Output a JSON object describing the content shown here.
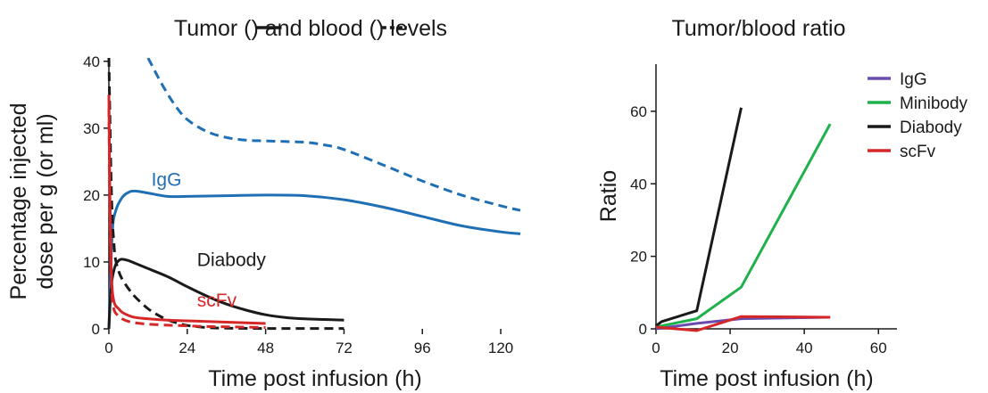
{
  "chart_data": [
    {
      "type": "line",
      "title": "Tumor (—) and blood (- - -) levels",
      "title_parts": [
        "Tumor (",
        ") and blood (",
        ") levels"
      ],
      "xlabel": "Time post infusion (h)",
      "ylabel": "Percentage injected dose per g (or ml)",
      "ylabel_lines": [
        "Percentage injected",
        "dose per g (or ml)"
      ],
      "xlim": [
        0,
        126
      ],
      "ylim": [
        0,
        40.5
      ],
      "xticks": [
        0,
        24,
        48,
        72,
        96,
        120
      ],
      "yticks": [
        0,
        10,
        20,
        30,
        40
      ],
      "grid": false,
      "legend": "none",
      "series": [
        {
          "name": "IgG",
          "kind": "tumor",
          "color": "#1f6fb4",
          "dash": false,
          "x": [
            0,
            1,
            2,
            4,
            6,
            8,
            12,
            18,
            24,
            36,
            48,
            60,
            72,
            84,
            96,
            108,
            120,
            126
          ],
          "y": [
            0,
            14,
            17.5,
            19.6,
            20.4,
            20.6,
            20.3,
            19.8,
            19.8,
            19.9,
            20.0,
            19.9,
            19.3,
            18.2,
            16.8,
            15.4,
            14.5,
            14.2
          ]
        },
        {
          "name": "IgG",
          "kind": "blood",
          "color": "#1f6fb4",
          "dash": true,
          "x": [
            12,
            16,
            20,
            24,
            30,
            36,
            42,
            48,
            54,
            60,
            66,
            72,
            84,
            96,
            108,
            120,
            126
          ],
          "y": [
            40.5,
            36.8,
            33.6,
            31.3,
            29.5,
            28.6,
            28.2,
            28.1,
            28.0,
            27.9,
            27.5,
            26.8,
            24.5,
            22.1,
            20.0,
            18.4,
            17.7
          ]
        },
        {
          "name": "Diabody",
          "kind": "tumor",
          "color": "#1a1a1a",
          "dash": false,
          "x": [
            0,
            0.5,
            1,
            2,
            3,
            4,
            6,
            8,
            12,
            18,
            24,
            30,
            36,
            42,
            48,
            54,
            60,
            66,
            72
          ],
          "y": [
            0,
            5,
            7.5,
            9.5,
            10.2,
            10.4,
            10.2,
            9.8,
            9.0,
            7.8,
            6.3,
            4.9,
            3.7,
            2.8,
            2.1,
            1.7,
            1.5,
            1.4,
            1.3
          ]
        },
        {
          "name": "Diabody",
          "kind": "blood",
          "color": "#1a1a1a",
          "dash": true,
          "x": [
            0,
            0.3,
            0.6,
            1,
            1.5,
            2,
            3,
            4,
            6,
            8,
            12,
            16,
            20,
            24,
            30,
            36,
            48,
            60,
            72
          ],
          "y": [
            40.5,
            32,
            24,
            17,
            13,
            10.5,
            8.6,
            7.5,
            6.0,
            4.8,
            3.0,
            1.8,
            1.0,
            0.5,
            0.2,
            0.1,
            0.05,
            0.05,
            0.05
          ]
        },
        {
          "name": "scFv",
          "kind": "tumor",
          "color": "#d62728",
          "dash": false,
          "x": [
            0,
            0.3,
            0.6,
            1,
            1.5,
            2,
            3,
            4,
            6,
            8,
            12,
            18,
            24,
            30,
            36,
            42,
            48
          ],
          "y": [
            35,
            20,
            11,
            6,
            4.2,
            3.5,
            3.0,
            2.5,
            2.0,
            1.7,
            1.5,
            1.3,
            1.2,
            1.1,
            1.0,
            0.9,
            0.8
          ]
        },
        {
          "name": "scFv",
          "kind": "blood",
          "color": "#d62728",
          "dash": true,
          "x": [
            0,
            0.3,
            0.6,
            1,
            1.5,
            2,
            3,
            4,
            6,
            8,
            12,
            18,
            24,
            30,
            36,
            42,
            48
          ],
          "y": [
            33,
            18,
            9,
            4.5,
            3.0,
            2.4,
            1.9,
            1.5,
            1.1,
            0.9,
            0.7,
            0.55,
            0.45,
            0.35,
            0.3,
            0.25,
            0.2
          ]
        }
      ],
      "annotations": [
        {
          "text": "IgG",
          "x": 13,
          "y": 21.4,
          "color": "#1f6fb4"
        },
        {
          "text": "Diabody",
          "x": 27,
          "y": 9.4,
          "color": "#1a1a1a"
        },
        {
          "text": "scFv",
          "x": 27,
          "y": 3.3,
          "color": "#d62728"
        }
      ]
    },
    {
      "type": "line",
      "title": "Tumor/blood ratio",
      "xlabel": "Time post infusion (h)",
      "ylabel": "Ratio",
      "xlim": [
        0,
        65
      ],
      "ylim": [
        0,
        73
      ],
      "xticks": [
        0,
        20,
        40,
        60
      ],
      "yticks": [
        0,
        20,
        40,
        60
      ],
      "grid": false,
      "legend": "top-right",
      "series": [
        {
          "name": "IgG",
          "color": "#6a4caf",
          "x": [
            0,
            11,
            23,
            47
          ],
          "y": [
            0,
            1.5,
            2.8,
            3.2
          ]
        },
        {
          "name": "Minibody",
          "color": "#1fb14b",
          "x": [
            0,
            11,
            23,
            47
          ],
          "y": [
            0.5,
            2.8,
            11.5,
            56.5
          ]
        },
        {
          "name": "Diabody",
          "color": "#1a1a1a",
          "x": [
            0,
            1.5,
            11,
            23
          ],
          "y": [
            0.8,
            2,
            5,
            61
          ]
        },
        {
          "name": "scFv",
          "color": "#d62728",
          "x": [
            0,
            11,
            23,
            47
          ],
          "y": [
            0.5,
            -0.5,
            3.4,
            3.2
          ]
        }
      ]
    }
  ]
}
